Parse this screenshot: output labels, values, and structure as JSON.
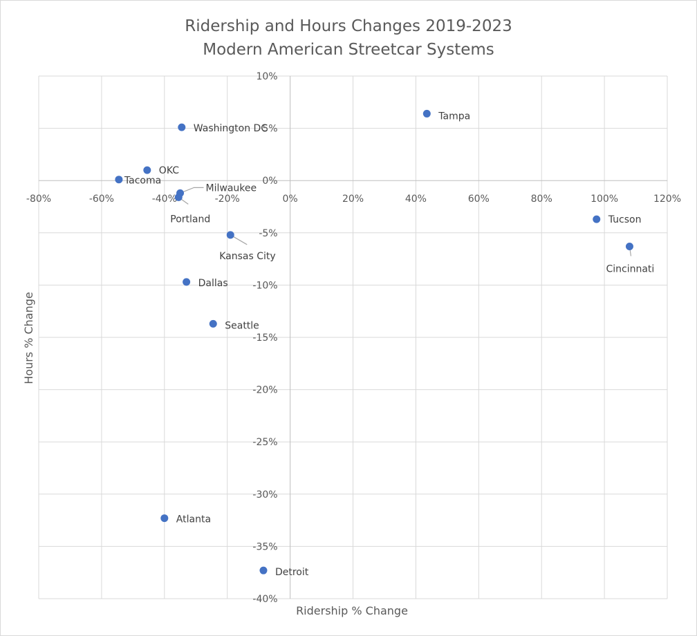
{
  "chart_data": {
    "type": "scatter",
    "title": [
      "Ridership and Hours Changes 2019-2023",
      "Modern American Streetcar Systems"
    ],
    "xlabel": "Ridership % Change",
    "ylabel": "Hours % Change",
    "xlim": [
      -80,
      120
    ],
    "ylim": [
      -40,
      10
    ],
    "x_ticks": [
      -80,
      -60,
      -40,
      -20,
      0,
      20,
      40,
      60,
      80,
      100,
      120
    ],
    "y_ticks": [
      -40,
      -35,
      -30,
      -25,
      -20,
      -15,
      -10,
      -5,
      0,
      5,
      10
    ],
    "x_tick_labels": [
      "-80%",
      "-60%",
      "-40%",
      "-20%",
      "0%",
      "20%",
      "40%",
      "60%",
      "80%",
      "100%",
      "120%"
    ],
    "y_tick_labels": [
      "-40%",
      "-35%",
      "-30%",
      "-25%",
      "-20%",
      "-15%",
      "-10%",
      "-5%",
      "0%",
      "5%",
      "10%"
    ],
    "grid": true,
    "marker_color": "#4472c4",
    "points": [
      {
        "label": "Tampa",
        "x": 43.5,
        "y": 6.4
      },
      {
        "label": "Washington DC",
        "x": -34.5,
        "y": 5.1
      },
      {
        "label": "OKC",
        "x": -45.5,
        "y": 1.0
      },
      {
        "label": "Tacoma",
        "x": -54.5,
        "y": 0.1
      },
      {
        "label": "Milwaukee",
        "x": -35,
        "y": -1.2
      },
      {
        "label": "Portland",
        "x": -35.5,
        "y": -1.6
      },
      {
        "label": "Kansas City",
        "x": -19,
        "y": -5.2
      },
      {
        "label": "Dallas",
        "x": -33,
        "y": -9.7
      },
      {
        "label": "Seattle",
        "x": -24.5,
        "y": -13.7
      },
      {
        "label": "Atlanta",
        "x": -40,
        "y": -32.3
      },
      {
        "label": "Detroit",
        "x": -8.5,
        "y": -37.3
      },
      {
        "label": "Tucson",
        "x": 97.5,
        "y": -3.7
      },
      {
        "label": "Cincinnati",
        "x": 108,
        "y": -6.3
      }
    ]
  }
}
